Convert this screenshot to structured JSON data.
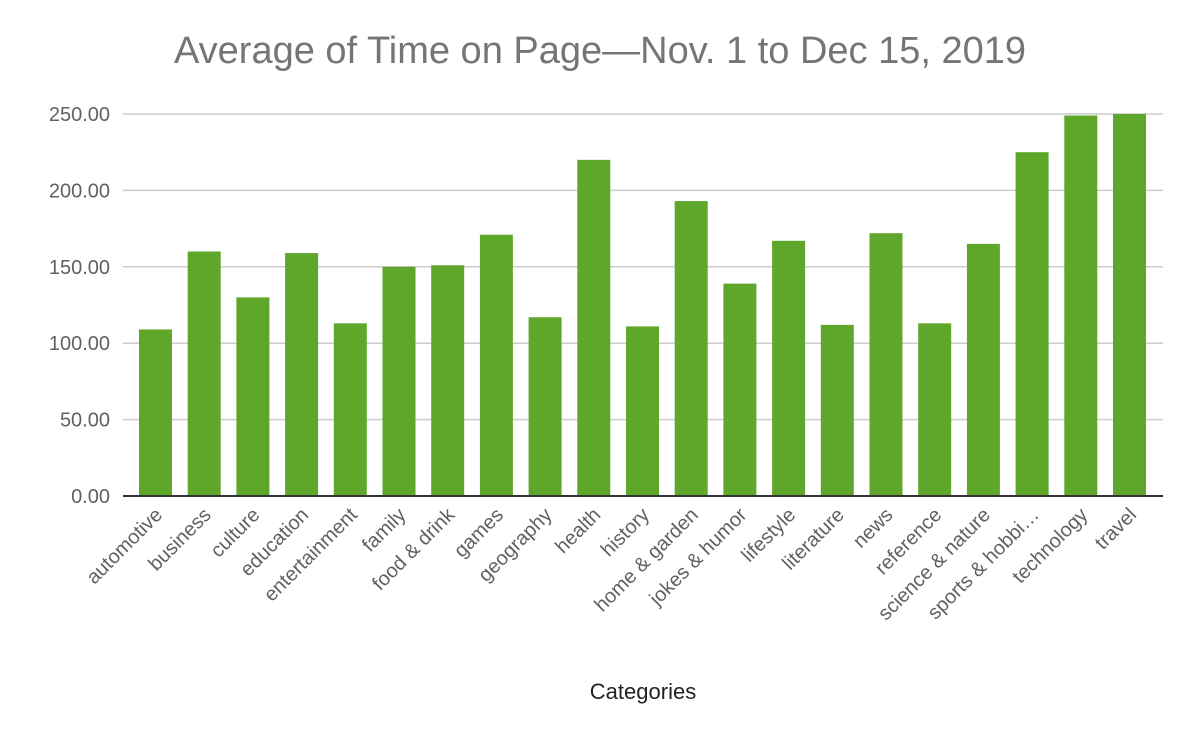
{
  "chart_data": {
    "type": "bar",
    "title": "Average of Time on Page—Nov. 1 to Dec 15, 2019",
    "xlabel": "Categories",
    "ylabel": "",
    "ylim": [
      0,
      250
    ],
    "yticks": [
      "0.00",
      "50.00",
      "100.00",
      "150.00",
      "200.00",
      "250.00"
    ],
    "grid": true,
    "legend": "none",
    "bar_color": "#5ea72a",
    "categories": [
      "automotive",
      "business",
      "culture",
      "education",
      "entertainment",
      "family",
      "food & drink",
      "games",
      "geography",
      "health",
      "history",
      "home & garden",
      "jokes & humor",
      "lifestyle",
      "literature",
      "news",
      "reference",
      "science & nature",
      "sports & hobbi…",
      "technology",
      "travel"
    ],
    "values": [
      109,
      160,
      130,
      159,
      113,
      150,
      151,
      171,
      117,
      220,
      111,
      193,
      139,
      167,
      112,
      172,
      113,
      165,
      225,
      249,
      250
    ]
  }
}
